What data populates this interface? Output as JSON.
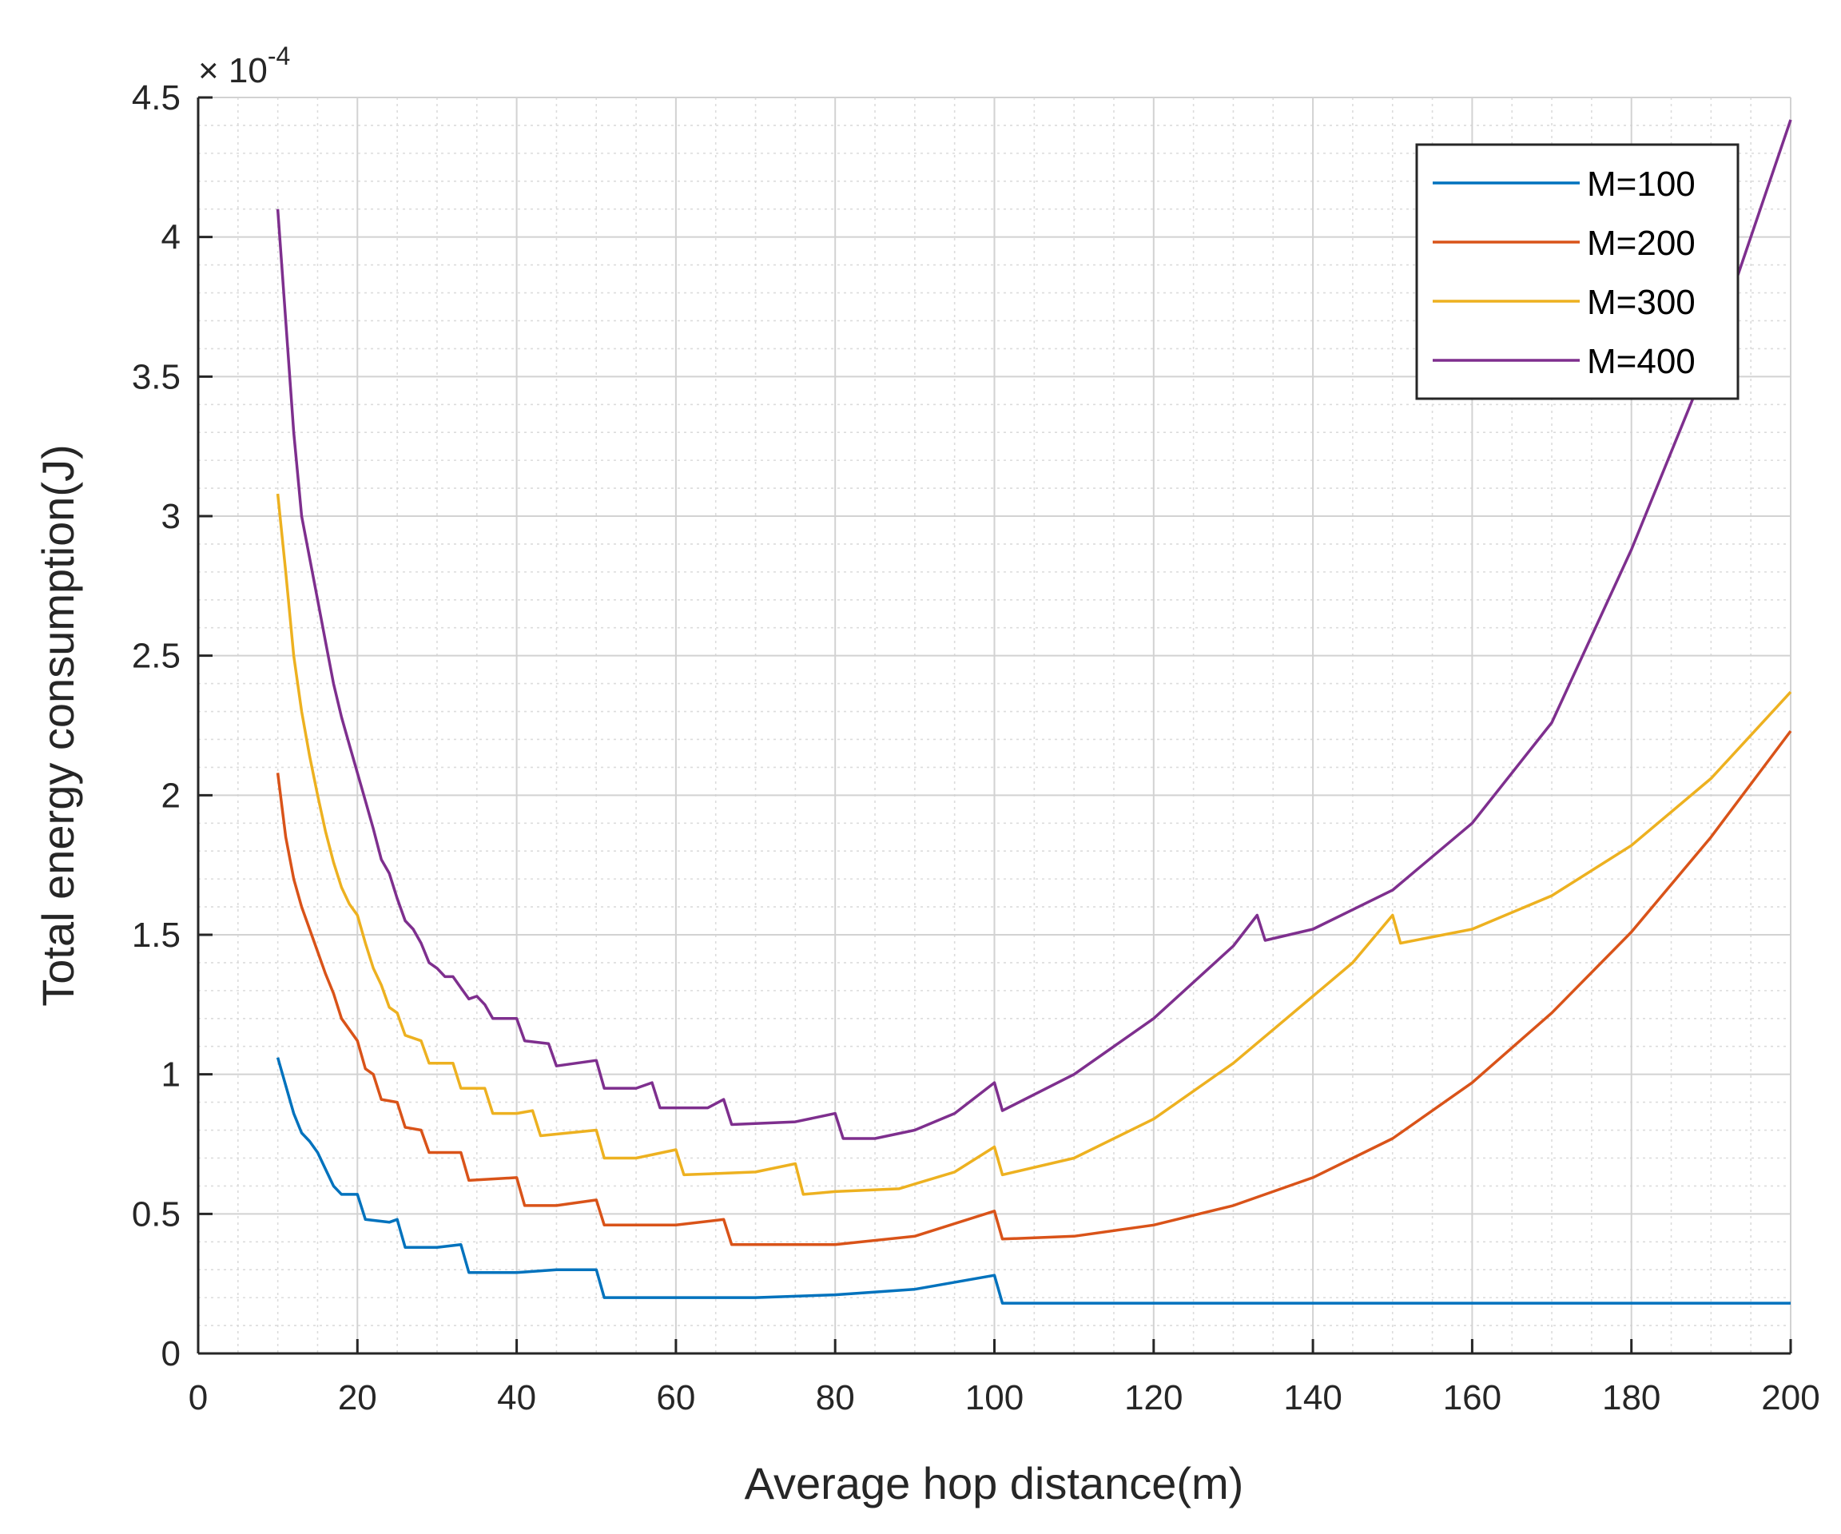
{
  "chart_data": {
    "type": "line",
    "title": "",
    "xlabel": "Average hop distance(m)",
    "ylabel": "Total energy consumption(J)",
    "y_exponent": {
      "prefix": "× 10",
      "power": "-4"
    },
    "xlim": [
      0,
      200
    ],
    "ylim": [
      0,
      4.5
    ],
    "xticks": [
      0,
      20,
      40,
      60,
      80,
      100,
      120,
      140,
      160,
      180,
      200
    ],
    "xtick_labels": [
      "0",
      "20",
      "40",
      "60",
      "80",
      "100",
      "120",
      "140",
      "160",
      "180",
      "200"
    ],
    "yticks": [
      0,
      0.5,
      1,
      1.5,
      2,
      2.5,
      3,
      3.5,
      4,
      4.5
    ],
    "ytick_labels": [
      "0",
      "0.5",
      "1",
      "1.5",
      "2",
      "2.5",
      "3",
      "3.5",
      "4",
      "4.5"
    ],
    "grid": true,
    "minor_grid": true,
    "legend_position": "top-right",
    "series": [
      {
        "name": "M=100",
        "color": "#0072BD",
        "points": [
          [
            10,
            1.06
          ],
          [
            12,
            0.86
          ],
          [
            13,
            0.79
          ],
          [
            14,
            0.76
          ],
          [
            15,
            0.72
          ],
          [
            16,
            0.66
          ],
          [
            17,
            0.6
          ],
          [
            18,
            0.57
          ],
          [
            20,
            0.57
          ],
          [
            21,
            0.48
          ],
          [
            24,
            0.47
          ],
          [
            25,
            0.48
          ],
          [
            26,
            0.38
          ],
          [
            30,
            0.38
          ],
          [
            33,
            0.39
          ],
          [
            34,
            0.29
          ],
          [
            40,
            0.29
          ],
          [
            45,
            0.3
          ],
          [
            50,
            0.3
          ],
          [
            51,
            0.2
          ],
          [
            60,
            0.2
          ],
          [
            70,
            0.2
          ],
          [
            80,
            0.21
          ],
          [
            90,
            0.23
          ],
          [
            100,
            0.28
          ],
          [
            101,
            0.18
          ],
          [
            120,
            0.18
          ],
          [
            140,
            0.18
          ],
          [
            160,
            0.18
          ],
          [
            180,
            0.18
          ],
          [
            200,
            0.18
          ]
        ]
      },
      {
        "name": "M=200",
        "color": "#D95319",
        "points": [
          [
            10,
            2.08
          ],
          [
            11,
            1.85
          ],
          [
            12,
            1.7
          ],
          [
            13,
            1.6
          ],
          [
            14,
            1.52
          ],
          [
            15,
            1.44
          ],
          [
            16,
            1.36
          ],
          [
            17,
            1.29
          ],
          [
            18,
            1.2
          ],
          [
            20,
            1.12
          ],
          [
            21,
            1.02
          ],
          [
            22,
            1.0
          ],
          [
            23,
            0.91
          ],
          [
            25,
            0.9
          ],
          [
            26,
            0.81
          ],
          [
            28,
            0.8
          ],
          [
            29,
            0.72
          ],
          [
            33,
            0.72
          ],
          [
            34,
            0.62
          ],
          [
            40,
            0.63
          ],
          [
            41,
            0.53
          ],
          [
            45,
            0.53
          ],
          [
            50,
            0.55
          ],
          [
            51,
            0.46
          ],
          [
            60,
            0.46
          ],
          [
            66,
            0.48
          ],
          [
            67,
            0.39
          ],
          [
            80,
            0.39
          ],
          [
            90,
            0.42
          ],
          [
            100,
            0.51
          ],
          [
            101,
            0.41
          ],
          [
            110,
            0.42
          ],
          [
            120,
            0.46
          ],
          [
            130,
            0.53
          ],
          [
            140,
            0.63
          ],
          [
            150,
            0.77
          ],
          [
            160,
            0.97
          ],
          [
            170,
            1.22
          ],
          [
            180,
            1.51
          ],
          [
            190,
            1.85
          ],
          [
            200,
            2.23
          ]
        ]
      },
      {
        "name": "M=300",
        "color": "#EDB120",
        "points": [
          [
            10,
            3.08
          ],
          [
            11,
            2.8
          ],
          [
            12,
            2.5
          ],
          [
            13,
            2.3
          ],
          [
            14,
            2.14
          ],
          [
            15,
            2.0
          ],
          [
            16,
            1.87
          ],
          [
            17,
            1.76
          ],
          [
            18,
            1.67
          ],
          [
            19,
            1.61
          ],
          [
            20,
            1.57
          ],
          [
            21,
            1.47
          ],
          [
            22,
            1.38
          ],
          [
            23,
            1.32
          ],
          [
            24,
            1.24
          ],
          [
            25,
            1.22
          ],
          [
            26,
            1.14
          ],
          [
            28,
            1.12
          ],
          [
            29,
            1.04
          ],
          [
            32,
            1.04
          ],
          [
            33,
            0.95
          ],
          [
            36,
            0.95
          ],
          [
            37,
            0.86
          ],
          [
            40,
            0.86
          ],
          [
            42,
            0.87
          ],
          [
            43,
            0.78
          ],
          [
            50,
            0.8
          ],
          [
            51,
            0.7
          ],
          [
            55,
            0.7
          ],
          [
            60,
            0.73
          ],
          [
            61,
            0.64
          ],
          [
            70,
            0.65
          ],
          [
            75,
            0.68
          ],
          [
            76,
            0.57
          ],
          [
            80,
            0.58
          ],
          [
            88,
            0.59
          ],
          [
            95,
            0.65
          ],
          [
            100,
            0.74
          ],
          [
            101,
            0.64
          ],
          [
            110,
            0.7
          ],
          [
            120,
            0.84
          ],
          [
            130,
            1.04
          ],
          [
            140,
            1.28
          ],
          [
            145,
            1.4
          ],
          [
            150,
            1.57
          ],
          [
            151,
            1.47
          ],
          [
            160,
            1.52
          ],
          [
            170,
            1.64
          ],
          [
            180,
            1.82
          ],
          [
            190,
            2.06
          ],
          [
            200,
            2.37
          ]
        ]
      },
      {
        "name": "M=400",
        "color": "#7E2F8E",
        "points": [
          [
            10,
            4.1
          ],
          [
            11,
            3.7
          ],
          [
            12,
            3.3
          ],
          [
            13,
            3.0
          ],
          [
            14,
            2.85
          ],
          [
            15,
            2.7
          ],
          [
            16,
            2.55
          ],
          [
            17,
            2.4
          ],
          [
            18,
            2.28
          ],
          [
            19,
            2.18
          ],
          [
            20,
            2.08
          ],
          [
            21,
            1.98
          ],
          [
            22,
            1.88
          ],
          [
            23,
            1.77
          ],
          [
            24,
            1.72
          ],
          [
            25,
            1.63
          ],
          [
            26,
            1.55
          ],
          [
            27,
            1.52
          ],
          [
            28,
            1.47
          ],
          [
            29,
            1.4
          ],
          [
            30,
            1.38
          ],
          [
            31,
            1.35
          ],
          [
            32,
            1.35
          ],
          [
            33,
            1.31
          ],
          [
            34,
            1.27
          ],
          [
            35,
            1.28
          ],
          [
            36,
            1.25
          ],
          [
            37,
            1.2
          ],
          [
            40,
            1.2
          ],
          [
            41,
            1.12
          ],
          [
            44,
            1.11
          ],
          [
            45,
            1.03
          ],
          [
            50,
            1.05
          ],
          [
            51,
            0.95
          ],
          [
            55,
            0.95
          ],
          [
            57,
            0.97
          ],
          [
            58,
            0.88
          ],
          [
            64,
            0.88
          ],
          [
            66,
            0.91
          ],
          [
            67,
            0.82
          ],
          [
            75,
            0.83
          ],
          [
            80,
            0.86
          ],
          [
            81,
            0.77
          ],
          [
            85,
            0.77
          ],
          [
            90,
            0.8
          ],
          [
            95,
            0.86
          ],
          [
            100,
            0.97
          ],
          [
            101,
            0.87
          ],
          [
            110,
            1.0
          ],
          [
            120,
            1.2
          ],
          [
            130,
            1.46
          ],
          [
            133,
            1.57
          ],
          [
            134,
            1.48
          ],
          [
            140,
            1.52
          ],
          [
            150,
            1.66
          ],
          [
            160,
            1.9
          ],
          [
            170,
            2.26
          ],
          [
            180,
            2.88
          ],
          [
            190,
            3.58
          ],
          [
            200,
            4.42
          ]
        ]
      }
    ]
  }
}
